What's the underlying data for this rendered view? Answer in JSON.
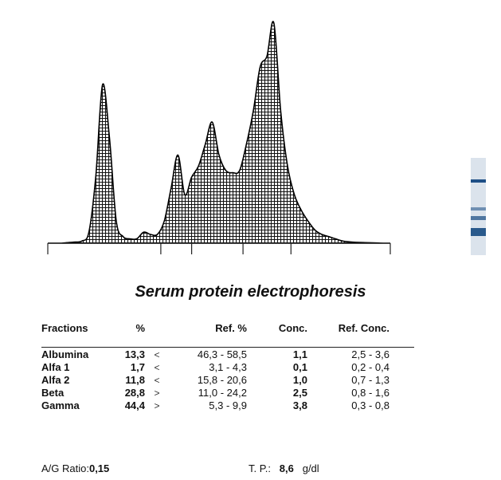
{
  "chart_data": {
    "type": "area",
    "title": "Serum protein electrophoresis",
    "x": [
      0,
      2,
      4,
      6,
      8,
      10,
      12,
      14,
      16,
      18,
      20,
      22,
      24,
      26,
      28,
      30,
      32,
      34,
      36,
      38,
      40,
      42,
      44,
      46,
      48,
      50,
      52,
      54,
      56,
      58,
      60,
      62,
      64,
      66,
      68,
      70,
      72,
      74,
      76,
      78,
      80,
      82,
      84,
      86,
      88,
      90,
      92,
      94,
      96,
      98,
      100
    ],
    "values": [
      0,
      0,
      0,
      0.3,
      0.5,
      1,
      5,
      30,
      72,
      48,
      10,
      3,
      2,
      2,
      5,
      4,
      4,
      10,
      25,
      40,
      22,
      30,
      35,
      45,
      55,
      40,
      33,
      32,
      33,
      45,
      60,
      80,
      85,
      100,
      60,
      35,
      22,
      15,
      10,
      6,
      4,
      3,
      2,
      1,
      0.6,
      0.4,
      0.3,
      0.2,
      0.1,
      0,
      0
    ],
    "ylim": [
      0,
      105
    ],
    "grid": true
  },
  "densitometer_strip": {
    "band_colors": [
      "#dbe3ec",
      "#1e4f86",
      "#6f8fb2",
      "#2a5a8c",
      "#b9c8d8"
    ]
  },
  "table": {
    "headers": [
      "Fractions",
      "%",
      "",
      "Ref. %",
      "Conc.",
      "Ref. Conc."
    ],
    "rows": [
      {
        "name": "Albumina",
        "pct": "13,3",
        "flag": "<",
        "ref": "46,3 - 58,5",
        "conc": "1,1",
        "refc": "2,5 -  3,6"
      },
      {
        "name": "Alfa 1",
        "pct": "1,7",
        "flag": "<",
        "ref": "3,1 -  4,3",
        "conc": "0,1",
        "refc": "0,2 -  0,4"
      },
      {
        "name": "Alfa 2",
        "pct": "11,8",
        "flag": "<",
        "ref": "15,8 - 20,6",
        "conc": "1,0",
        "refc": "0,7 -  1,3"
      },
      {
        "name": "Beta",
        "pct": "28,8",
        "flag": ">",
        "ref": "11,0 - 24,2",
        "conc": "2,5",
        "refc": "0,8 -  1,6"
      },
      {
        "name": "Gamma",
        "pct": "44,4",
        "flag": ">",
        "ref": "5,3 -  9,9",
        "conc": "3,8",
        "refc": "0,3 -  0,8"
      }
    ]
  },
  "footer": {
    "ag_label": "A/G Ratio:",
    "ag_value": "0,15",
    "tp_label": "T. P.:",
    "tp_value": "8,6",
    "tp_unit": "g/dl"
  }
}
